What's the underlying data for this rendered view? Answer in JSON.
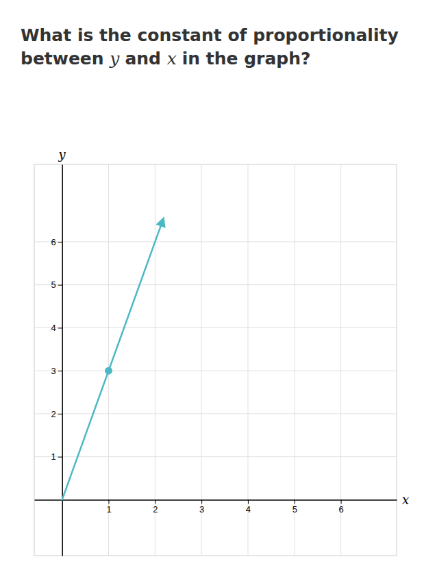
{
  "chart_data": {
    "type": "line",
    "title": "What is the constant of proportionality between y and x in the graph?",
    "x_label": "x",
    "y_label": "y",
    "xlim": [
      -0.6,
      7.2
    ],
    "ylim": [
      -1.3,
      7.8
    ],
    "xticks": [
      1,
      2,
      3,
      4,
      5,
      6
    ],
    "yticks": [
      1,
      2,
      3,
      4,
      5,
      6
    ],
    "grid": true,
    "series": [
      {
        "type": "line",
        "color": "#4bb8c4",
        "x": [
          0,
          2.18
        ],
        "values": [
          0,
          6.54
        ]
      },
      {
        "type": "scatter",
        "color": "#4bb8c4",
        "x": [
          1
        ],
        "values": [
          3
        ]
      }
    ]
  }
}
